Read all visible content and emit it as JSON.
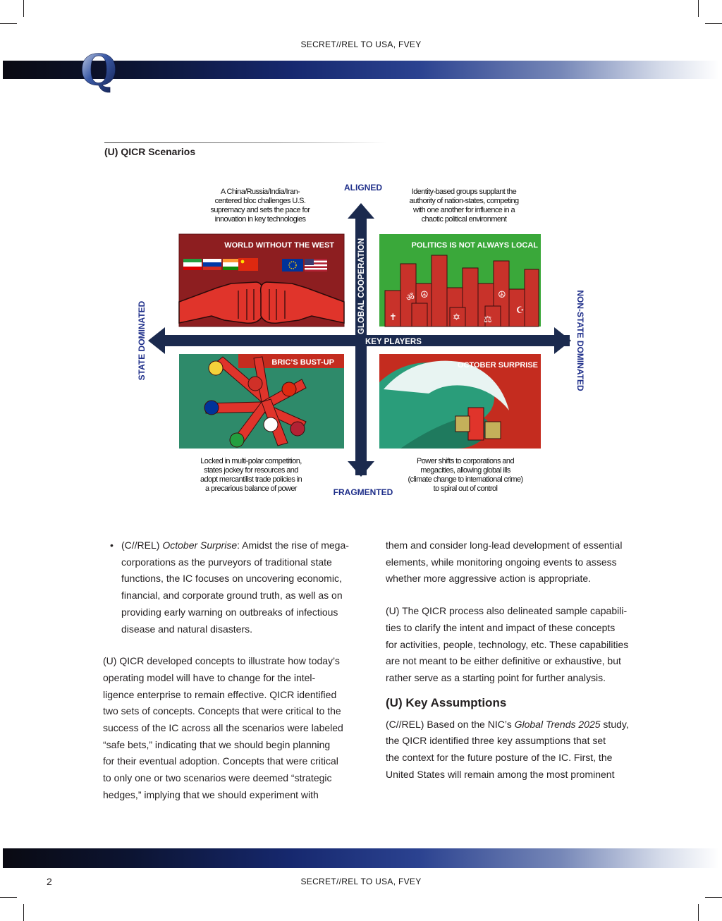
{
  "header": {
    "classification": "SECRET//REL TO USA, FVEY",
    "logo_letter": "Q"
  },
  "section_title": "(U) QICR Scenarios",
  "diagram": {
    "axes": {
      "top": "ALIGNED",
      "bottom": "FRAGMENTED",
      "left": "STATE DOMINATED",
      "right": "NON-STATE DOMINATED",
      "vertical": "GLOBAL COOPERATION",
      "horizontal": "KEY PLAYERS"
    },
    "quadrants": [
      {
        "title": "WORLD WITHOUT THE WEST",
        "caption": [
          "A China/Russia/India/Iran-",
          "centered bloc challenges U.S.",
          "supremacy and sets the pace for",
          "innovation in key technologies"
        ]
      },
      {
        "title": "POLITICS IS NOT ALWAYS LOCAL",
        "caption": [
          "Identity-based groups supplant the",
          "authority of nation-states, competing",
          "with one another for influence in a",
          "chaotic political environment"
        ]
      },
      {
        "title": "BRIC’S BUST-UP",
        "caption": [
          "Locked in multi-polar competition,",
          "states jockey for resources and",
          "adopt mercantilist trade policies in",
          "a precarious balance of power"
        ]
      },
      {
        "title": "OCTOBER SURPRISE",
        "caption": [
          "Power shifts to corporations and",
          "megacities, allowing global ills",
          "(climate change to international crime)",
          "to spiral out of control"
        ]
      }
    ],
    "colors": {
      "navy": "#1b2a4e",
      "axis_text": "#1f2f8a",
      "red_panel": "#c42c1f",
      "dark_red_panel": "#8d1e20",
      "green_panel": "#3aa83a",
      "teal_panel": "#2e8a6a"
    }
  },
  "left_column": {
    "bullet_symbol": "•",
    "bullet": {
      "prefix": "(C//REL) ",
      "term": "October Surprise",
      "lines": [
        ": Amidst the rise of mega-",
        "corporations as the purveyors of traditional state",
        "functions, the IC focuses on uncovering economic,",
        "financial, and corporate ground truth, as well as on",
        "providing early warning on outbreaks of infectious",
        "disease and natural disasters."
      ]
    },
    "paragraph": [
      "(U) QICR developed concepts to illustrate how today’s",
      "operating model will have to change for the intel-",
      "ligence enterprise to remain effective. QICR identified",
      "two sets of concepts. Concepts that were critical to the",
      "success of the IC across all the scenarios were labeled",
      "“safe bets,” indicating that we should begin planning",
      "for their eventual adoption. Concepts that were critical",
      "to only one or two scenarios were deemed “strategic",
      "hedges,” implying that we should experiment with"
    ]
  },
  "right_column": {
    "para1": [
      "them and consider long-lead development of essential",
      "elements, while monitoring ongoing events to assess",
      "whether more aggressive action is appropriate."
    ],
    "para2": [
      "(U) The QICR process also delineated sample capabili-",
      "ties to clarify the intent and impact of these concepts",
      "for activities, people, technology, etc. These capabilities",
      "are not meant to be either definitive or exhaustive, but",
      "rather serve as a starting point for further analysis."
    ],
    "subhead": "(U) Key Assumptions",
    "para3": {
      "prefix": "(C//REL) Based on the NIC’s ",
      "term": "Global Trends 2025",
      "lines": [
        " study,",
        "the QICR identified three key assumptions that set",
        "the context for the future posture of the IC. First, the",
        "United States will remain among the most prominent"
      ]
    }
  },
  "footer": {
    "page_number": "2",
    "classification": "SECRET//REL TO USA, FVEY"
  }
}
